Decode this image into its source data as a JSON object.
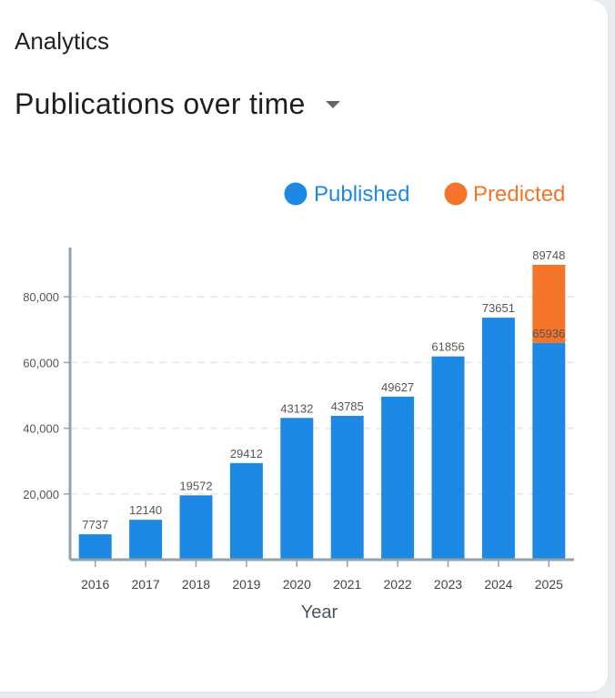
{
  "header": {
    "section_label": "Analytics",
    "selector_value": "Publications over time",
    "selector_icon": "caret-down-icon"
  },
  "colors": {
    "published": "#1e88e5",
    "predicted": "#f4752a",
    "axis": "#90a4ae",
    "grid": "#e6e6e6",
    "label": "#555555"
  },
  "chart_data": {
    "type": "bar",
    "stacked": true,
    "categories": [
      "2016",
      "2017",
      "2018",
      "2019",
      "2020",
      "2021",
      "2022",
      "2023",
      "2024",
      "2025"
    ],
    "series": [
      {
        "name": "Published",
        "values": [
          7737,
          12140,
          19572,
          29412,
          43132,
          43785,
          49627,
          61856,
          73651,
          65936
        ]
      },
      {
        "name": "Predicted",
        "values": [
          0,
          0,
          0,
          0,
          0,
          0,
          0,
          0,
          0,
          23812
        ]
      }
    ],
    "data_labels": [
      7737,
      12140,
      19572,
      29412,
      43132,
      43785,
      49627,
      61856,
      73651,
      89748
    ],
    "extra_labels": [
      {
        "category": "2025",
        "value": 65936
      }
    ],
    "xlabel": "Year",
    "ylabel": "",
    "ylim": [
      0,
      95000
    ],
    "yticks": [
      20000,
      40000,
      60000,
      80000
    ],
    "ytick_labels": [
      "20,000",
      "40,000",
      "60,000",
      "80,000"
    ],
    "grid": "horizontal-dashed",
    "legend_position": "top-right"
  }
}
